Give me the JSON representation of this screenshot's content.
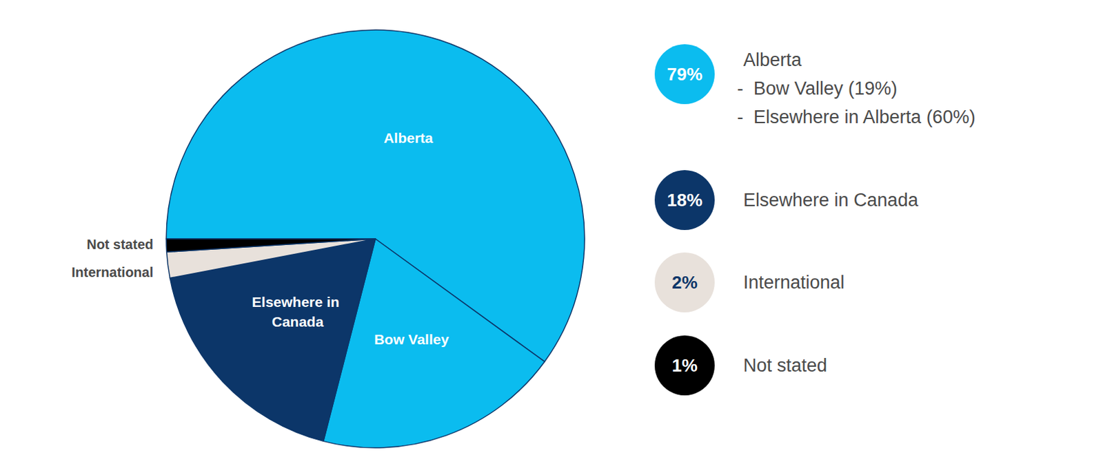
{
  "chart_data": {
    "type": "pie",
    "categories": [
      "Alberta",
      "Bow Valley",
      "Elsewhere in Canada",
      "International",
      "Not stated"
    ],
    "values": [
      60,
      19,
      18,
      2,
      1
    ],
    "colors": [
      "#0bbcef",
      "#0bbcef",
      "#0c3669",
      "#e8e1db",
      "#000000"
    ],
    "legend_items": [
      {
        "value": 79,
        "value_label": "79%",
        "label": "Alberta",
        "color": "#0bbcef",
        "details": [
          "-  Bow Valley (19%)",
          "-  Elsewhere in Alberta (60%)"
        ]
      },
      {
        "value": 18,
        "value_label": "18%",
        "label": "Elsewhere in Canada",
        "color": "#0c3669",
        "details": []
      },
      {
        "value": 2,
        "value_label": "2%",
        "label": "International",
        "color": "#e8e1db",
        "details": []
      },
      {
        "value": 1,
        "value_label": "1%",
        "label": "Not stated",
        "color": "#000000",
        "details": []
      }
    ]
  }
}
